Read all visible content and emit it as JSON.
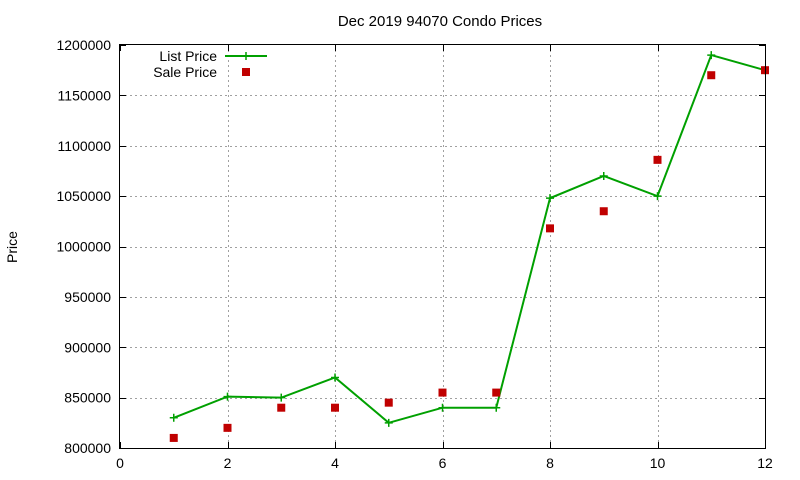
{
  "chart_data": {
    "type": "line",
    "title": "Dec 2019 94070 Condo Prices",
    "xlabel": "",
    "ylabel": "Price",
    "xlim": [
      0,
      12
    ],
    "ylim": [
      800000,
      1200000
    ],
    "x_ticks": [
      0,
      2,
      4,
      6,
      8,
      10,
      12
    ],
    "y_ticks": [
      800000,
      850000,
      900000,
      950000,
      1000000,
      1050000,
      1100000,
      1150000,
      1200000
    ],
    "grid": true,
    "legend_position": "top-left",
    "series": [
      {
        "name": "List Price",
        "style": "line-with-plus-markers",
        "color": "#00a000",
        "x": [
          1,
          2,
          3,
          4,
          5,
          6,
          7,
          8,
          9,
          10,
          11,
          12
        ],
        "values": [
          830000,
          851000,
          850000,
          870000,
          825000,
          840000,
          840000,
          1048000,
          1070000,
          1050000,
          1190000,
          1175000
        ]
      },
      {
        "name": "Sale Price",
        "style": "square-markers",
        "color": "#c00000",
        "x": [
          1,
          2,
          3,
          4,
          5,
          6,
          7,
          8,
          9,
          10,
          11,
          12
        ],
        "values": [
          810000,
          820000,
          840000,
          840000,
          845000,
          855000,
          855000,
          1018000,
          1035000,
          1086000,
          1170000,
          1175000
        ]
      }
    ]
  }
}
